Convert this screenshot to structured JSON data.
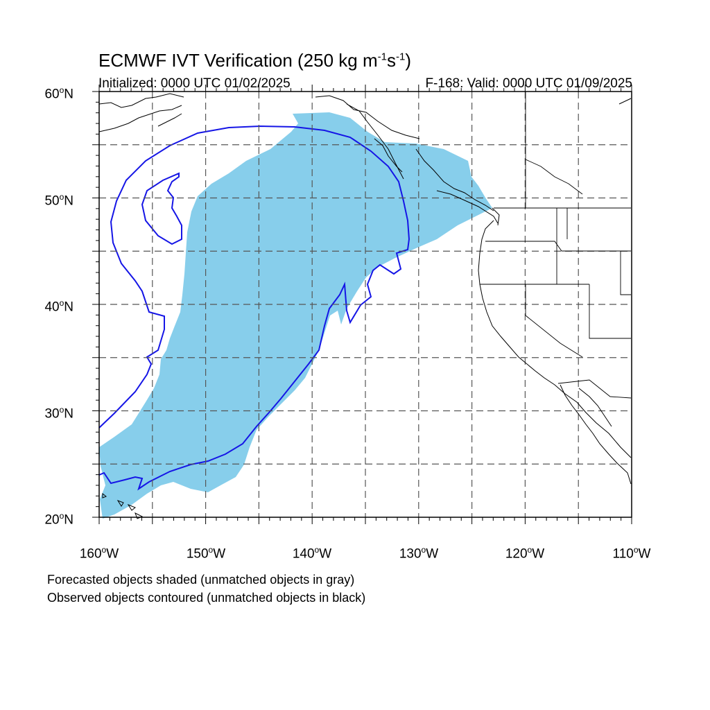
{
  "title": {
    "main": "ECMWF IVT Verification (250 kg m",
    "sup1": "-1",
    "mid": "s",
    "sup2": "-1",
    "end": ")"
  },
  "subtitle_left": "Initialized: 0000 UTC 01/02/2025",
  "subtitle_right": "F-168: Valid: 0000 UTC 01/09/2025",
  "lat_labels": [
    {
      "num": "60",
      "hem": "N"
    },
    {
      "num": "50",
      "hem": "N"
    },
    {
      "num": "40",
      "hem": "N"
    },
    {
      "num": "30",
      "hem": "N"
    },
    {
      "num": "20",
      "hem": "N"
    }
  ],
  "lon_labels": [
    {
      "num": "160",
      "hem": "W"
    },
    {
      "num": "150",
      "hem": "W"
    },
    {
      "num": "140",
      "hem": "W"
    },
    {
      "num": "130",
      "hem": "W"
    },
    {
      "num": "120",
      "hem": "W"
    },
    {
      "num": "110",
      "hem": "W"
    }
  ],
  "notes": [
    "Forecasted objects shaded (unmatched objects in gray)",
    "Observed objects contoured (unmatched objects in black)"
  ],
  "colors": {
    "forecast_fill": "#87ceeb",
    "observed_contour": "#1515e6",
    "grid": "#555555"
  },
  "map": {
    "lon_range": [
      -160,
      -110
    ],
    "lat_range": [
      20,
      60
    ]
  }
}
